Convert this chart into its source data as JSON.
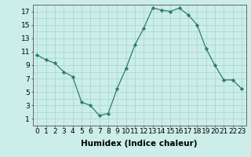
{
  "x": [
    0,
    1,
    2,
    3,
    4,
    5,
    6,
    7,
    8,
    9,
    10,
    11,
    12,
    13,
    14,
    15,
    16,
    17,
    18,
    19,
    20,
    21,
    22,
    23
  ],
  "y": [
    10.5,
    9.8,
    9.3,
    8.0,
    7.3,
    3.5,
    3.0,
    1.5,
    1.8,
    5.5,
    8.5,
    12.0,
    14.5,
    17.5,
    17.2,
    17.0,
    17.5,
    16.5,
    15.0,
    11.5,
    9.0,
    6.8,
    6.8,
    5.5
  ],
  "line_color": "#2e7d6e",
  "marker": "D",
  "marker_size": 2.2,
  "bg_color": "#cceee8",
  "grid_color": "#aad8d0",
  "xlabel": "Humidex (Indice chaleur)",
  "xlabel_fontsize": 7.5,
  "xlim": [
    -0.5,
    23.5
  ],
  "ylim": [
    0,
    18
  ],
  "xticks": [
    0,
    1,
    2,
    3,
    4,
    5,
    6,
    7,
    8,
    9,
    10,
    11,
    12,
    13,
    14,
    15,
    16,
    17,
    18,
    19,
    20,
    21,
    22,
    23
  ],
  "yticks": [
    1,
    3,
    5,
    7,
    9,
    11,
    13,
    15,
    17
  ],
  "tick_fontsize": 6.5
}
